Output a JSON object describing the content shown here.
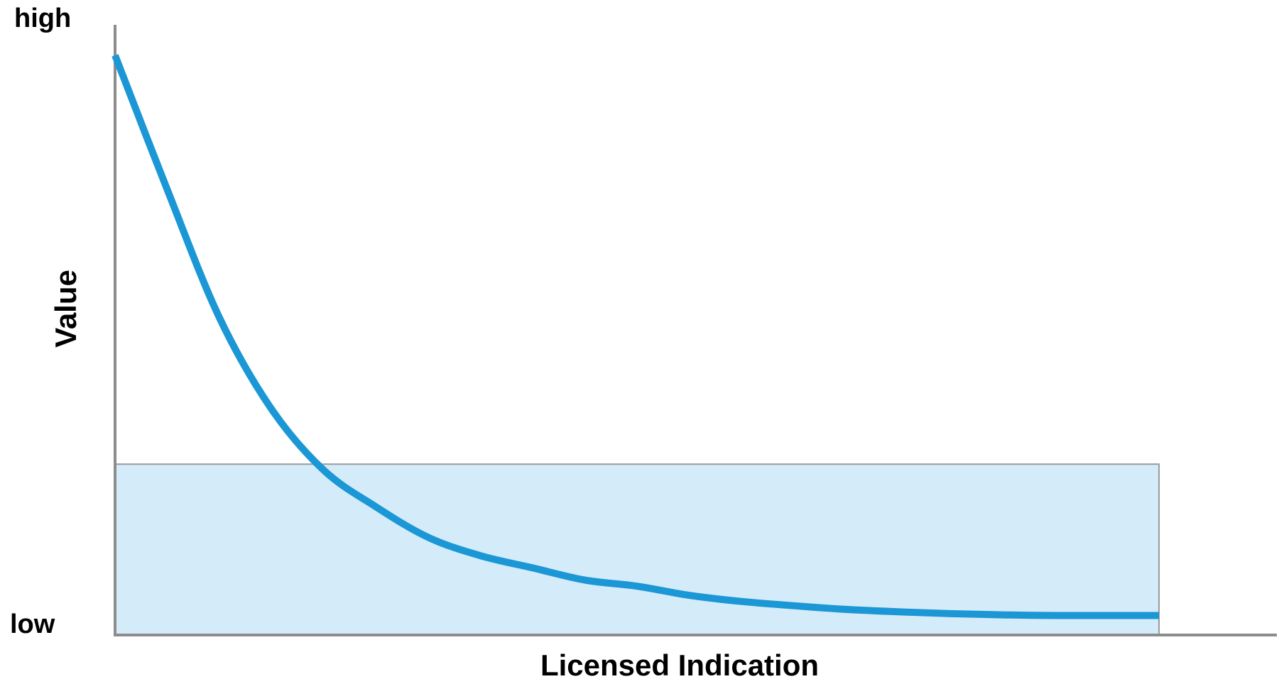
{
  "chart_data": {
    "type": "line",
    "xlabel": "Licensed Indication",
    "ylabel": "Value",
    "y_tick_labels": {
      "top": "high",
      "bottom": "low"
    },
    "xlim": [
      0,
      1
    ],
    "ylim": [
      0,
      1
    ],
    "grid": false,
    "legend": "none",
    "series": [
      {
        "x": [
          0,
          0.05,
          0.1,
          0.15,
          0.2,
          0.25,
          0.3,
          0.35,
          0.4,
          0.45,
          0.5,
          0.55,
          0.6,
          0.65,
          0.7,
          0.75,
          0.8,
          0.85,
          0.9,
          1.0
        ],
        "y": [
          0.95,
          0.73,
          0.52,
          0.37,
          0.27,
          0.21,
          0.16,
          0.13,
          0.11,
          0.09,
          0.08,
          0.065,
          0.055,
          0.048,
          0.042,
          0.038,
          0.035,
          0.033,
          0.032,
          0.032
        ]
      }
    ],
    "shaded_region": {
      "x_range": [
        0,
        1.0
      ],
      "y_range": [
        0,
        0.28
      ]
    },
    "colors": {
      "curve": "#1b97d6",
      "region_fill": "#d4ecfa",
      "region_border": "#9a9a9a",
      "axis": "#8c8c8c",
      "text": "#000000"
    }
  }
}
